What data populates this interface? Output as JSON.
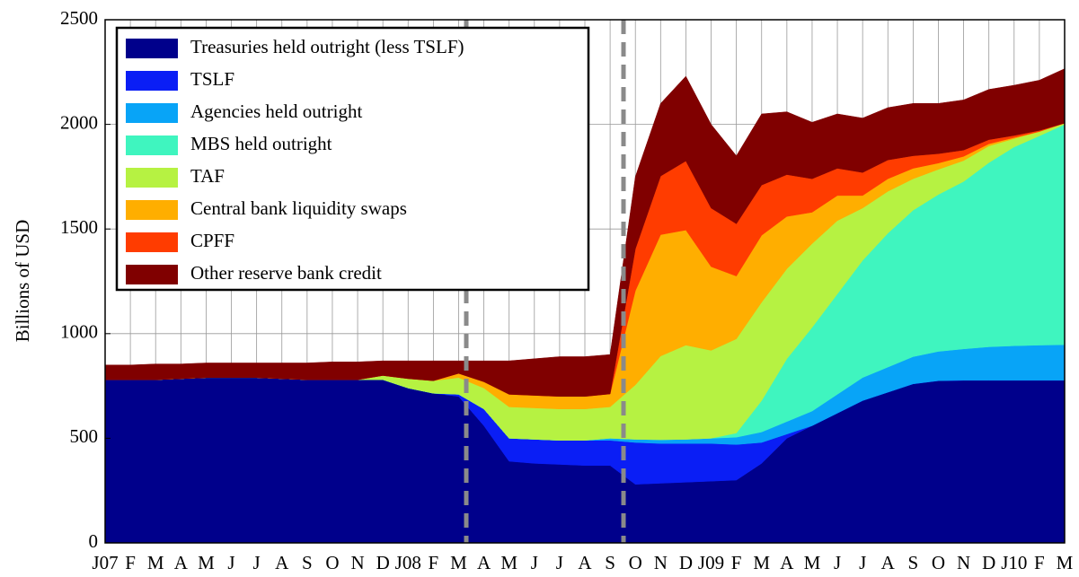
{
  "chart_data": {
    "type": "stacked_area",
    "ylabel": "Billions of USD",
    "categories": [
      "J07",
      "F",
      "M",
      "A",
      "M",
      "J",
      "J",
      "A",
      "S",
      "O",
      "N",
      "D",
      "J08",
      "F",
      "M",
      "A",
      "M",
      "J",
      "J",
      "A",
      "S",
      "O",
      "N",
      "D",
      "J09",
      "F",
      "M",
      "A",
      "M",
      "J",
      "J",
      "A",
      "S",
      "O",
      "N",
      "D",
      "J10",
      "F",
      "M"
    ],
    "ylim": [
      0,
      2500
    ],
    "yticks": [
      0,
      500,
      1000,
      1500,
      2000,
      2500
    ],
    "grid": true,
    "legend": "upper left",
    "series": [
      {
        "name": "Treasuries held outright (less TSLF)",
        "color": "#00008b",
        "values": [
          780,
          780,
          780,
          785,
          790,
          790,
          790,
          785,
          780,
          780,
          780,
          780,
          740,
          715,
          700,
          560,
          390,
          380,
          375,
          370,
          370,
          280,
          285,
          290,
          295,
          300,
          380,
          500,
          560,
          620,
          680,
          720,
          760,
          775,
          777,
          777,
          777,
          777,
          777
        ]
      },
      {
        "name": "TSLF",
        "color": "#0a1ef5",
        "values": [
          0,
          0,
          0,
          0,
          0,
          0,
          0,
          0,
          0,
          0,
          0,
          0,
          0,
          0,
          10,
          80,
          110,
          115,
          115,
          120,
          120,
          200,
          190,
          185,
          180,
          170,
          100,
          20,
          0,
          0,
          0,
          0,
          0,
          0,
          0,
          0,
          0,
          0,
          0
        ]
      },
      {
        "name": "Agencies held outright",
        "color": "#08a4f7",
        "values": [
          0,
          0,
          0,
          0,
          0,
          0,
          0,
          0,
          0,
          0,
          0,
          0,
          0,
          0,
          0,
          0,
          0,
          0,
          0,
          0,
          10,
          15,
          18,
          20,
          25,
          35,
          50,
          60,
          70,
          90,
          110,
          120,
          130,
          140,
          150,
          160,
          165,
          168,
          170
        ]
      },
      {
        "name": "MBS held outright",
        "color": "#3ff5bf",
        "values": [
          0,
          0,
          0,
          0,
          0,
          0,
          0,
          0,
          0,
          0,
          0,
          0,
          0,
          0,
          0,
          0,
          0,
          0,
          0,
          0,
          0,
          0,
          0,
          0,
          0,
          20,
          150,
          300,
          400,
          480,
          560,
          640,
          700,
          750,
          800,
          880,
          950,
          1000,
          1053
        ]
      },
      {
        "name": "TAF",
        "color": "#b6f242",
        "values": [
          0,
          0,
          0,
          0,
          0,
          0,
          0,
          0,
          0,
          0,
          0,
          20,
          45,
          60,
          80,
          100,
          150,
          150,
          150,
          150,
          150,
          260,
          400,
          450,
          420,
          450,
          470,
          430,
          400,
          350,
          250,
          200,
          150,
          120,
          100,
          80,
          40,
          20,
          5
        ]
      },
      {
        "name": "Central bank liquidity swaps",
        "color": "#ffae00",
        "values": [
          0,
          0,
          0,
          0,
          0,
          0,
          0,
          0,
          0,
          0,
          0,
          0,
          0,
          0,
          20,
          30,
          60,
          60,
          60,
          60,
          62,
          450,
          580,
          550,
          400,
          300,
          320,
          250,
          150,
          120,
          60,
          60,
          50,
          30,
          20,
          10,
          5,
          1,
          1
        ]
      },
      {
        "name": "CPFF",
        "color": "#ff3c00",
        "values": [
          0,
          0,
          0,
          0,
          0,
          0,
          0,
          0,
          0,
          0,
          0,
          0,
          0,
          0,
          0,
          0,
          0,
          0,
          0,
          0,
          0,
          200,
          280,
          330,
          280,
          250,
          240,
          200,
          160,
          130,
          110,
          90,
          60,
          45,
          30,
          20,
          10,
          5,
          0
        ]
      },
      {
        "name": "Other reserve bank credit",
        "color": "#800000",
        "values": [
          70,
          70,
          75,
          70,
          70,
          70,
          70,
          75,
          80,
          85,
          85,
          70,
          85,
          95,
          60,
          100,
          160,
          175,
          190,
          190,
          188,
          345,
          347,
          405,
          400,
          325,
          340,
          300,
          270,
          260,
          260,
          250,
          250,
          240,
          240,
          240,
          240,
          240,
          260
        ]
      }
    ]
  }
}
